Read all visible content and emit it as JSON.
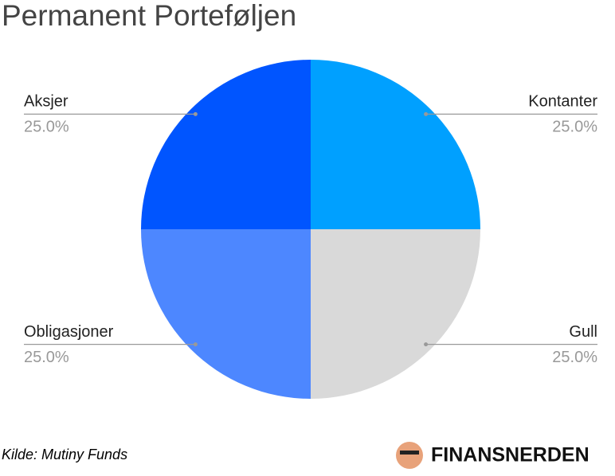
{
  "chart_data": {
    "type": "pie",
    "title": "Permanent Porteføljen",
    "categories": [
      "Kontanter",
      "Gull",
      "Obligasjoner",
      "Aksjer"
    ],
    "values": [
      25,
      25,
      25,
      25
    ],
    "value_labels": [
      "25.0%",
      "25.0%",
      "25.0%",
      "25.0%"
    ],
    "colors": [
      "#00a0ff",
      "#d9d9d9",
      "#4d87ff",
      "#0055ff"
    ],
    "source": "Kilde: Mutiny Funds",
    "brand": "FINANSNERDEN"
  }
}
